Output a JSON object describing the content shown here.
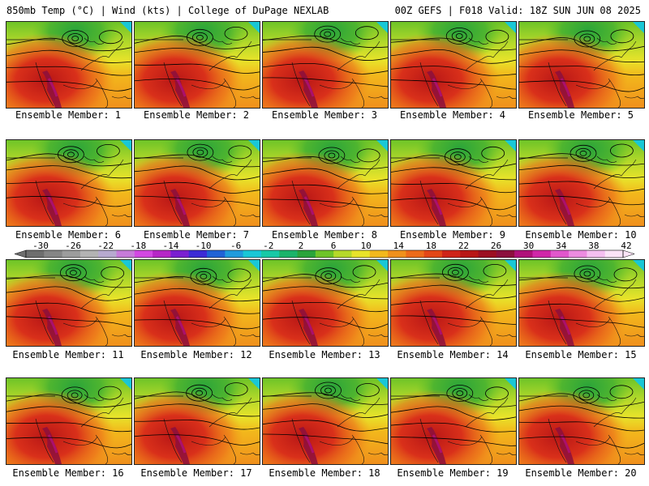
{
  "header": {
    "left": "850mb Temp (°C) | Wind (kts) | College of DuPage NEXLAB",
    "right": "00Z GEFS | F018 Valid: 18Z SUN JUN 08 2025"
  },
  "members": [
    "Ensemble Member: 1",
    "Ensemble Member: 2",
    "Ensemble Member: 3",
    "Ensemble Member: 4",
    "Ensemble Member: 5",
    "Ensemble Member: 6",
    "Ensemble Member: 7",
    "Ensemble Member: 8",
    "Ensemble Member: 9",
    "Ensemble Member: 10",
    "Ensemble Member: 11",
    "Ensemble Member: 12",
    "Ensemble Member: 13",
    "Ensemble Member: 14",
    "Ensemble Member: 15",
    "Ensemble Member: 16",
    "Ensemble Member: 17",
    "Ensemble Member: 18",
    "Ensemble Member: 19",
    "Ensemble Member: 20"
  ],
  "colorbar": {
    "ticks": [
      "-30",
      "-26",
      "-22",
      "-18",
      "-14",
      "-10",
      "-6",
      "-2",
      "2",
      "6",
      "10",
      "14",
      "18",
      "22",
      "26",
      "30",
      "34",
      "38",
      "42"
    ],
    "colors": [
      "#6e6e6e",
      "#858585",
      "#9c9c9c",
      "#b3b3b3",
      "#b7a9cf",
      "#c77bd9",
      "#d347e3",
      "#b627c7",
      "#7a1fd1",
      "#3c2bd6",
      "#1f62d6",
      "#1f9bdc",
      "#19c7d6",
      "#17c9a6",
      "#1bb46a",
      "#2aa43a",
      "#6ec428",
      "#b5d92a",
      "#e8e32a",
      "#f2b81c",
      "#f0901c",
      "#ec6a1a",
      "#e34617",
      "#cf2318",
      "#b81616",
      "#9c0f22",
      "#8c0f3d",
      "#b0107a",
      "#d026a8",
      "#e256cc",
      "#ec8be0",
      "#f5bff0",
      "#fbe3f7"
    ]
  }
}
